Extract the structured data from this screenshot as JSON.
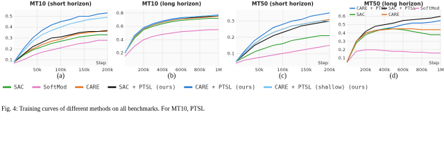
{
  "chart_data": [
    {
      "type": "line",
      "title": "MT10 (short horizon)",
      "panel_label": "(a)",
      "x_label": "Step",
      "x": [
        0,
        20000,
        40000,
        60000,
        80000,
        100000,
        120000,
        140000,
        160000,
        180000,
        200000
      ],
      "xlim": [
        0,
        200000
      ],
      "xticks": [
        {
          "value": 50000,
          "label": "50k"
        },
        {
          "value": 100000,
          "label": "100k"
        },
        {
          "value": 150000,
          "label": "150k"
        },
        {
          "value": 200000,
          "label": "200k"
        }
      ],
      "ylim": [
        0.04,
        0.56
      ],
      "yticks": [
        0.1,
        0.2,
        0.3,
        0.4,
        0.5
      ],
      "grid": true,
      "series": [
        {
          "color": "#2ca02c",
          "values": [
            0.08,
            0.14,
            0.19,
            0.22,
            0.25,
            0.27,
            0.29,
            0.31,
            0.32,
            0.33,
            0.33
          ]
        },
        {
          "color": "#e377c2",
          "values": [
            0.07,
            0.1,
            0.14,
            0.17,
            0.19,
            0.21,
            0.23,
            0.25,
            0.26,
            0.28,
            0.28
          ]
        },
        {
          "color": "#e6701a",
          "values": [
            0.08,
            0.15,
            0.2,
            0.24,
            0.27,
            0.29,
            0.32,
            0.34,
            0.35,
            0.36,
            0.36
          ]
        },
        {
          "color": "#111111",
          "values": [
            0.08,
            0.15,
            0.22,
            0.26,
            0.3,
            0.31,
            0.33,
            0.35,
            0.36,
            0.36,
            0.37
          ]
        },
        {
          "color": "#1f77d4",
          "values": [
            0.08,
            0.2,
            0.3,
            0.37,
            0.42,
            0.45,
            0.47,
            0.5,
            0.5,
            0.52,
            0.53
          ]
        },
        {
          "color": "#6ec1f0",
          "values": [
            0.08,
            0.18,
            0.27,
            0.33,
            0.37,
            0.4,
            0.43,
            0.45,
            0.47,
            0.48,
            0.49
          ]
        }
      ]
    },
    {
      "type": "line",
      "title": "MT10 (long horizon)",
      "panel_label": "(b)",
      "x": [
        0,
        100000,
        200000,
        300000,
        400000,
        500000,
        600000,
        700000,
        800000,
        900000,
        1000000
      ],
      "xlim": [
        0,
        1000000
      ],
      "xticks": [
        {
          "value": 200000,
          "label": "200k"
        },
        {
          "value": 400000,
          "label": "400k"
        },
        {
          "value": 600000,
          "label": "600k"
        },
        {
          "value": 800000,
          "label": "800k"
        },
        {
          "value": 1000000,
          "label": "1M"
        }
      ],
      "ylim": [
        0,
        0.85
      ],
      "yticks": [
        0.2,
        0.4,
        0.6,
        0.8
      ],
      "grid": true,
      "series": [
        {
          "color": "#2ca02c",
          "values": [
            0.2,
            0.42,
            0.55,
            0.6,
            0.64,
            0.67,
            0.69,
            0.7,
            0.71,
            0.72,
            0.72
          ]
        },
        {
          "color": "#e377c2",
          "values": [
            0.15,
            0.3,
            0.4,
            0.45,
            0.48,
            0.5,
            0.52,
            0.53,
            0.54,
            0.55,
            0.55
          ]
        },
        {
          "color": "#e6701a",
          "values": [
            0.2,
            0.44,
            0.56,
            0.62,
            0.66,
            0.69,
            0.71,
            0.72,
            0.73,
            0.74,
            0.75
          ]
        },
        {
          "color": "#111111",
          "values": [
            0.2,
            0.45,
            0.57,
            0.63,
            0.67,
            0.7,
            0.72,
            0.73,
            0.74,
            0.75,
            0.76
          ]
        },
        {
          "color": "#1f77d4",
          "values": [
            0.2,
            0.46,
            0.58,
            0.64,
            0.68,
            0.71,
            0.73,
            0.74,
            0.75,
            0.76,
            0.77
          ]
        },
        {
          "color": "#6ec1f0",
          "values": [
            0.2,
            0.45,
            0.57,
            0.63,
            0.67,
            0.7,
            0.72,
            0.74,
            0.75,
            0.76,
            0.76
          ]
        }
      ]
    },
    {
      "type": "line",
      "title": "MT50 (short horizon)",
      "panel_label": "(c)",
      "x_label": "Step",
      "x": [
        0,
        20000,
        40000,
        60000,
        80000,
        100000,
        120000,
        140000,
        160000,
        180000,
        200000
      ],
      "xlim": [
        0,
        200000
      ],
      "xticks": [
        {
          "value": 50000,
          "label": "50k"
        },
        {
          "value": 100000,
          "label": "100k"
        },
        {
          "value": 150000,
          "label": "150k"
        },
        {
          "value": 200000,
          "label": "200k"
        }
      ],
      "ylim": [
        0.02,
        0.37
      ],
      "yticks": [
        0.1,
        0.2,
        0.3
      ],
      "grid": true,
      "series": [
        {
          "color": "#2ca02c",
          "values": [
            0.05,
            0.08,
            0.11,
            0.13,
            0.15,
            0.16,
            0.18,
            0.19,
            0.2,
            0.21,
            0.21
          ]
        },
        {
          "color": "#e377c2",
          "values": [
            0.04,
            0.06,
            0.07,
            0.08,
            0.09,
            0.1,
            0.11,
            0.12,
            0.13,
            0.14,
            0.15
          ]
        },
        {
          "color": "#e6701a",
          "values": [
            0.05,
            0.11,
            0.16,
            0.2,
            0.23,
            0.25,
            0.27,
            0.28,
            0.29,
            0.3,
            0.31
          ]
        },
        {
          "color": "#111111",
          "values": [
            0.05,
            0.1,
            0.15,
            0.18,
            0.21,
            0.23,
            0.25,
            0.27,
            0.28,
            0.29,
            0.3
          ]
        },
        {
          "color": "#1f77d4",
          "values": [
            0.05,
            0.12,
            0.18,
            0.22,
            0.26,
            0.28,
            0.3,
            0.31,
            0.33,
            0.34,
            0.35
          ]
        },
        {
          "color": "#6ec1f0",
          "values": [
            0.05,
            0.11,
            0.16,
            0.2,
            0.23,
            0.25,
            0.27,
            0.28,
            0.29,
            0.3,
            0.3
          ]
        }
      ]
    },
    {
      "type": "line",
      "title": "MT50 (long horizon)",
      "panel_label": "(d)",
      "x_label": "Step",
      "x": [
        0,
        100000,
        200000,
        300000,
        400000,
        500000,
        600000,
        700000,
        800000,
        900000,
        1000000
      ],
      "xlim": [
        0,
        1000000
      ],
      "xticks": [
        {
          "value": 200000,
          "label": "200k"
        },
        {
          "value": 400000,
          "label": "400k"
        },
        {
          "value": 600000,
          "label": "600k"
        },
        {
          "value": 800000,
          "label": "800k"
        },
        {
          "value": 1000000,
          "label": "1M"
        }
      ],
      "ylim": [
        0,
        0.68
      ],
      "yticks": [
        0.1,
        0.2,
        0.3,
        0.4,
        0.5,
        0.6
      ],
      "grid": true,
      "series": [
        {
          "name": "CARE + PTSL",
          "color": "#1f77d4",
          "values": [
            0.05,
            0.3,
            0.4,
            0.43,
            0.45,
            0.47,
            0.5,
            0.52,
            0.52,
            0.53,
            0.55
          ]
        },
        {
          "name": "SAC + PTSL",
          "color": "#111111",
          "values": [
            0.05,
            0.3,
            0.42,
            0.48,
            0.5,
            0.52,
            0.55,
            0.56,
            0.57,
            0.58,
            0.6
          ]
        },
        {
          "name": "SoftMod",
          "color": "#e377c2",
          "values": [
            0.05,
            0.18,
            0.2,
            0.2,
            0.19,
            0.18,
            0.18,
            0.17,
            0.17,
            0.16,
            0.16
          ]
        },
        {
          "name": "SAC",
          "color": "#2ca02c",
          "values": [
            0.05,
            0.28,
            0.38,
            0.42,
            0.45,
            0.45,
            0.44,
            0.42,
            0.4,
            0.38,
            0.38
          ]
        },
        {
          "name": "CARE",
          "color": "#e6701a",
          "values": [
            0.05,
            0.3,
            0.4,
            0.43,
            0.44,
            0.45,
            0.45,
            0.45,
            0.44,
            0.44,
            0.44
          ]
        }
      ]
    }
  ],
  "legend": [
    {
      "name": "SAC",
      "color": "#2ca02c"
    },
    {
      "name": "SoftMod",
      "color": "#e377c2"
    },
    {
      "name": "CARE",
      "color": "#e6701a"
    },
    {
      "name": "SAC + PTSL (ours)",
      "color": "#111111"
    },
    {
      "name": "CARE + PTSL (ours)",
      "color": "#1f77d4"
    },
    {
      "name": "CARE + PTSL (shallow) (ours)",
      "color": "#6ec1f0"
    }
  ],
  "caption": "Fig. 4: Training curves of different methods on all benchmarks. For MT10, PTSL"
}
